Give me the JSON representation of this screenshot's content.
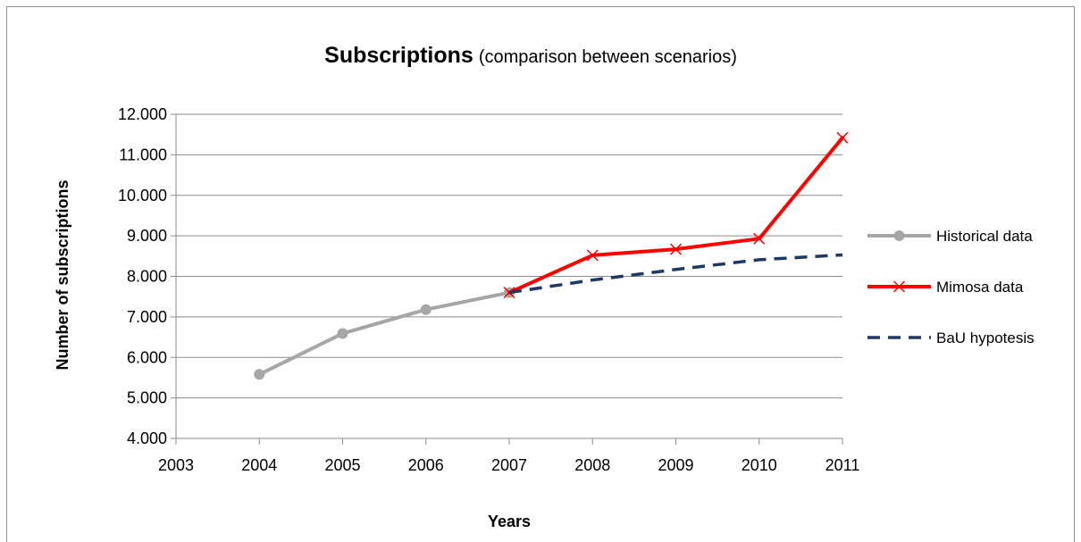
{
  "chart_data": {
    "type": "line",
    "title": "Subscriptions",
    "subtitle": "(comparison between scenarios)",
    "xlabel": "Years",
    "ylabel": "Number of subscriptions",
    "xlim": [
      2003,
      2011
    ],
    "ylim": [
      4000,
      12000
    ],
    "x_ticks": [
      2003,
      2004,
      2005,
      2006,
      2007,
      2008,
      2009,
      2010,
      2011
    ],
    "x_tick_labels": [
      "2003",
      "2004",
      "2005",
      "2006",
      "2007",
      "2008",
      "2009",
      "2010",
      "2011"
    ],
    "y_ticks": [
      4000,
      5000,
      6000,
      7000,
      8000,
      9000,
      10000,
      11000,
      12000
    ],
    "y_tick_labels": [
      "4.000",
      "5.000",
      "6.000",
      "7.000",
      "8.000",
      "9.000",
      "10.000",
      "11.000",
      "12.000"
    ],
    "grid": "horizontal",
    "legend_position": "right",
    "series": [
      {
        "name": "Historical data",
        "color": "#a6a6a6",
        "marker": "circle",
        "dash": "solid",
        "x": [
          2004,
          2005,
          2006,
          2007
        ],
        "y": [
          5580,
          6590,
          7180,
          7600
        ]
      },
      {
        "name": "Mimosa data",
        "color": "#ff0000",
        "marker": "x",
        "dash": "solid",
        "x": [
          2007,
          2008,
          2009,
          2010,
          2011
        ],
        "y": [
          7600,
          8520,
          8670,
          8930,
          11420
        ]
      },
      {
        "name": "BaU hypotesis",
        "color": "#1f3864",
        "marker": "none",
        "dash": "dashed",
        "x": [
          2007,
          2008,
          2009,
          2010,
          2011
        ],
        "y": [
          7600,
          7910,
          8170,
          8410,
          8530
        ]
      }
    ]
  }
}
